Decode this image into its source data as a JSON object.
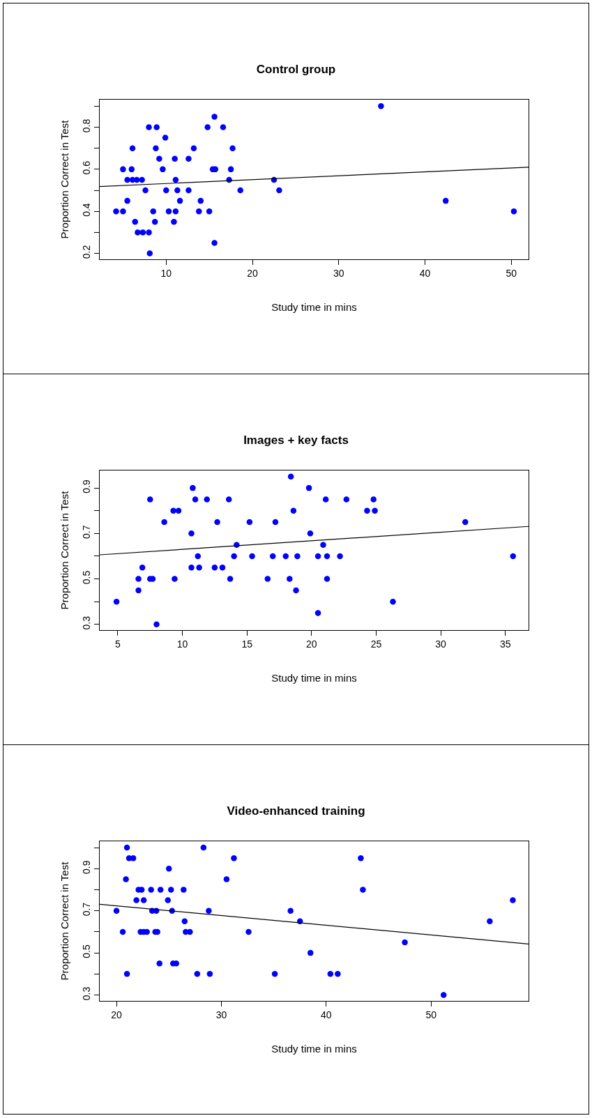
{
  "chart_data": [
    {
      "type": "scatter",
      "title": "Control group",
      "xlabel": "Study time in mins",
      "ylabel": "Proportion Correct in Test",
      "grid": false,
      "xlim": [
        2.3,
        52.0
      ],
      "xticks": [
        10,
        20,
        30,
        40,
        50
      ],
      "ylim": [
        0.172,
        0.931
      ],
      "yticks": [
        0.2,
        {
          "value": 0.3,
          "label": null
        },
        0.4,
        {
          "value": 0.5,
          "label": null
        },
        0.6,
        {
          "value": 0.7,
          "label": null
        },
        0.8,
        {
          "value": 0.9,
          "label": null
        }
      ],
      "series": [
        {
          "marker": "circle",
          "color": "#0000ff",
          "x": [
            4.2,
            5.0,
            5.0,
            5.5,
            5.5,
            6.1,
            6.0,
            6.1,
            6.6,
            7.2,
            6.4,
            6.7,
            7.3,
            8.0,
            7.6,
            8.0,
            8.9,
            8.1,
            8.5,
            8.7,
            8.8,
            9.2,
            9.9,
            9.6,
            10.0,
            10.3,
            10.9,
            11.0,
            11.1,
            11.1,
            11.3,
            11.6,
            12.6,
            12.6,
            13.2,
            13.8,
            14.0,
            14.8,
            15.0,
            15.6,
            15.4,
            15.7,
            15.6,
            16.6,
            17.3,
            17.5,
            17.7,
            18.6,
            22.5,
            23.1,
            34.9,
            42.4,
            50.3
          ],
          "values": [
            0.4,
            0.4,
            0.6,
            0.45,
            0.55,
            0.7,
            0.6,
            0.55,
            0.55,
            0.55,
            0.35,
            0.3,
            0.3,
            0.3,
            0.5,
            0.8,
            0.8,
            0.2,
            0.4,
            0.35,
            0.7,
            0.65,
            0.75,
            0.6,
            0.5,
            0.4,
            0.35,
            0.65,
            0.55,
            0.4,
            0.5,
            0.45,
            0.65,
            0.5,
            0.7,
            0.4,
            0.45,
            0.8,
            0.4,
            0.85,
            0.6,
            0.6,
            0.25,
            0.8,
            0.55,
            0.6,
            0.7,
            0.5,
            0.55,
            0.5,
            0.9,
            0.45,
            0.4
          ]
        },
        {
          "type": "line",
          "color": "#000000",
          "x": [
            2.3,
            52.0
          ],
          "values": [
            0.518,
            0.61
          ]
        }
      ]
    },
    {
      "type": "scatter",
      "title": "Images + key facts",
      "xlabel": "Study time in mins",
      "ylabel": "Proportion Correct in Test",
      "grid": false,
      "xlim": [
        3.6,
        36.8
      ],
      "xticks": [
        5,
        10,
        15,
        20,
        25,
        30,
        35
      ],
      "ylim": [
        0.275,
        0.977
      ],
      "yticks": [
        0.3,
        {
          "value": 0.4,
          "label": null
        },
        0.5,
        {
          "value": 0.6,
          "label": null
        },
        0.7,
        {
          "value": 0.8,
          "label": null
        },
        0.9
      ],
      "series": [
        {
          "marker": "circle",
          "color": "#0000ff",
          "x": [
            4.9,
            6.6,
            6.6,
            6.9,
            7.5,
            7.5,
            7.7,
            8.0,
            8.6,
            9.3,
            9.7,
            9.4,
            10.7,
            10.8,
            10.7,
            11.0,
            11.2,
            11.3,
            11.9,
            12.7,
            12.5,
            13.1,
            13.6,
            13.7,
            14.0,
            14.2,
            15.2,
            15.4,
            16.6,
            17.0,
            17.2,
            18.0,
            18.3,
            18.4,
            18.6,
            18.8,
            18.9,
            19.8,
            19.9,
            21.1,
            20.9,
            20.5,
            21.2,
            22.2,
            21.2,
            20.5,
            22.7,
            24.3,
            24.9,
            24.8,
            26.3,
            31.9,
            35.6
          ],
          "values": [
            0.4,
            0.5,
            0.45,
            0.55,
            0.85,
            0.5,
            0.5,
            0.3,
            0.75,
            0.8,
            0.8,
            0.5,
            0.7,
            0.9,
            0.55,
            0.85,
            0.6,
            0.55,
            0.85,
            0.75,
            0.55,
            0.55,
            0.85,
            0.5,
            0.6,
            0.65,
            0.75,
            0.6,
            0.5,
            0.6,
            0.75,
            0.6,
            0.5,
            0.95,
            0.8,
            0.45,
            0.6,
            0.9,
            0.7,
            0.85,
            0.65,
            0.6,
            0.6,
            0.6,
            0.5,
            0.35,
            0.85,
            0.8,
            0.8,
            0.85,
            0.4,
            0.75,
            0.6
          ]
        },
        {
          "type": "line",
          "color": "#000000",
          "x": [
            3.6,
            36.8
          ],
          "values": [
            0.606,
            0.731
          ]
        }
      ]
    },
    {
      "type": "scatter",
      "title": "Video-enhanced training",
      "xlabel": "Study time in mins",
      "ylabel": "Proportion Correct in Test",
      "grid": false,
      "xlim": [
        18.4,
        59.3
      ],
      "xticks": [
        20,
        30,
        40,
        50
      ],
      "ylim": [
        0.272,
        1.03
      ],
      "yticks": [
        0.3,
        {
          "value": 0.4,
          "label": null
        },
        0.5,
        {
          "value": 0.6,
          "label": null
        },
        0.7,
        {
          "value": 0.8,
          "label": null
        },
        0.9,
        {
          "value": 1.0,
          "label": null
        }
      ],
      "series": [
        {
          "marker": "circle",
          "color": "#0000ff",
          "x": [
            20.0,
            20.6,
            20.9,
            21.0,
            21.0,
            21.2,
            21.6,
            21.9,
            22.6,
            22.1,
            22.4,
            23.3,
            22.3,
            22.6,
            22.9,
            23.4,
            23.8,
            23.7,
            23.9,
            24.1,
            24.2,
            24.9,
            25.0,
            25.2,
            25.3,
            25.4,
            25.7,
            26.4,
            26.5,
            26.6,
            27.0,
            27.7,
            28.3,
            28.8,
            28.9,
            30.5,
            31.2,
            32.6,
            35.1,
            36.6,
            37.5,
            38.5,
            40.4,
            41.1,
            43.3,
            43.5,
            47.5,
            51.2,
            55.6,
            57.8
          ],
          "values": [
            0.7,
            0.6,
            0.85,
            1.0,
            0.4,
            0.95,
            0.95,
            0.75,
            0.75,
            0.8,
            0.8,
            0.8,
            0.6,
            0.6,
            0.6,
            0.7,
            0.7,
            0.6,
            0.6,
            0.45,
            0.8,
            0.75,
            0.9,
            0.8,
            0.7,
            0.45,
            0.45,
            0.8,
            0.65,
            0.6,
            0.6,
            0.4,
            1.0,
            0.7,
            0.4,
            0.85,
            0.95,
            0.6,
            0.4,
            0.7,
            0.65,
            0.5,
            0.4,
            0.4,
            0.95,
            0.8,
            0.55,
            0.3,
            0.65,
            0.75
          ]
        },
        {
          "type": "line",
          "color": "#000000",
          "x": [
            18.4,
            59.3
          ],
          "values": [
            0.731,
            0.542
          ]
        }
      ]
    }
  ]
}
